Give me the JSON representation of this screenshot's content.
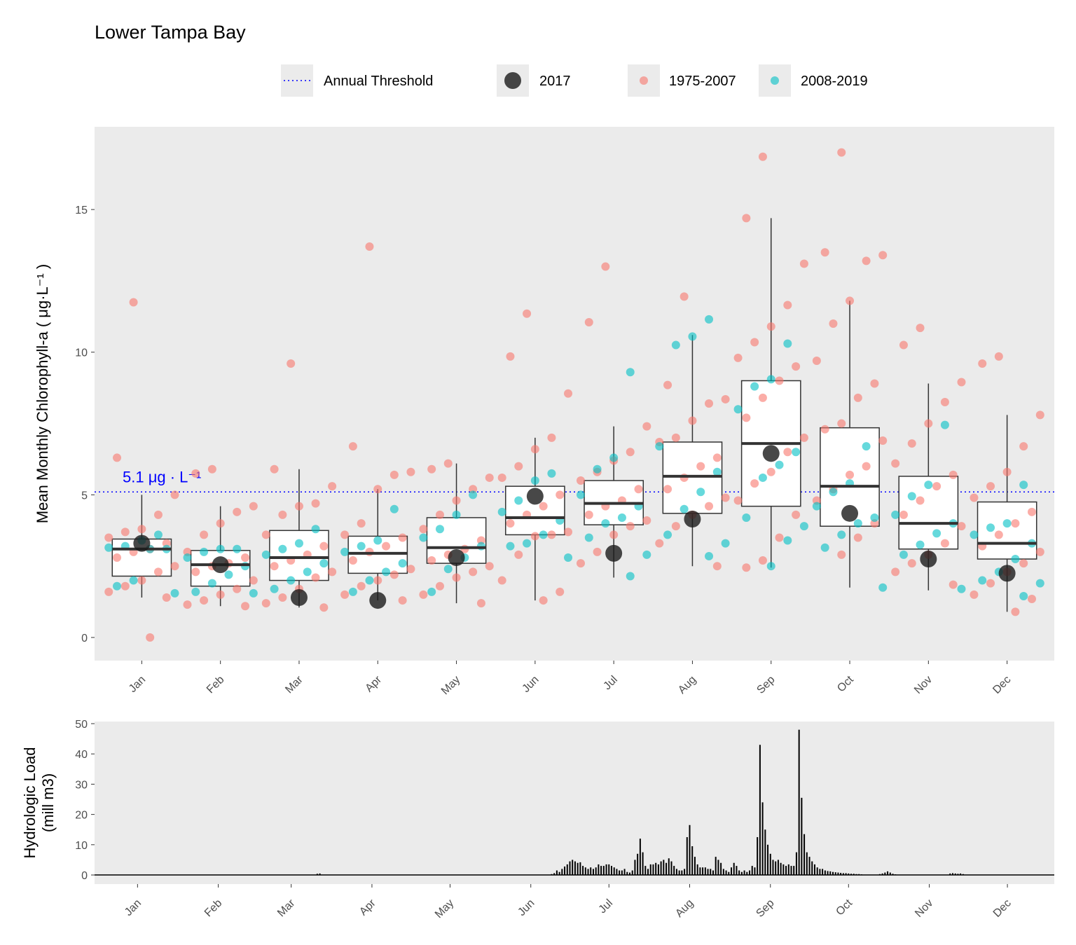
{
  "chart_data": [
    {
      "type": "box",
      "title": "Lower Tampa Bay",
      "ylabel": "Mean Monthly Chlorophyll-a ( μg·L⁻¹ )",
      "categories": [
        "Jan",
        "Feb",
        "Mar",
        "Apr",
        "May",
        "Jun",
        "Jul",
        "Aug",
        "Sep",
        "Oct",
        "Nov",
        "Dec"
      ],
      "ylim": [
        -0.81,
        17.9
      ],
      "yticks": [
        0,
        5,
        10,
        15
      ],
      "grid": false,
      "legend": "top",
      "boxes": {
        "color": "#ffffff",
        "values": [
          [
            1.4,
            2.15,
            3.1,
            3.45,
            5.0
          ],
          [
            1.1,
            1.8,
            2.55,
            3.05,
            4.6
          ],
          [
            1.05,
            2.0,
            2.8,
            3.75,
            5.9
          ],
          [
            1.3,
            2.25,
            2.95,
            3.55,
            5.2
          ],
          [
            1.2,
            2.6,
            3.15,
            4.2,
            6.1
          ],
          [
            1.3,
            3.6,
            4.2,
            5.3,
            7.0
          ],
          [
            2.1,
            3.95,
            4.7,
            5.5,
            7.4
          ],
          [
            2.5,
            4.35,
            5.65,
            6.85,
            10.6
          ],
          [
            2.45,
            4.6,
            6.8,
            9.0,
            14.7
          ],
          [
            1.75,
            3.9,
            5.3,
            7.35,
            11.8
          ],
          [
            1.65,
            3.1,
            4.0,
            5.65,
            8.9
          ],
          [
            0.9,
            2.75,
            3.3,
            4.75,
            7.8
          ]
        ]
      },
      "threshold": {
        "name": "Annual Threshold",
        "value": 5.1,
        "label": "5.1 μg · L⁻¹",
        "color": "#0000FF"
      },
      "series": [
        {
          "name": "2017",
          "color": "#1a1a1a",
          "values": [
            3.3,
            2.55,
            1.4,
            1.3,
            2.8,
            4.95,
            2.95,
            4.15,
            6.45,
            4.35,
            2.75,
            2.25
          ]
        },
        {
          "name": "1975-2007",
          "color": "#F8766D",
          "values": [
            [
              11.75,
              6.3,
              5.0,
              4.3,
              3.8,
              3.7,
              3.5,
              3.3,
              3.1,
              3.0,
              2.8,
              2.5,
              2.3,
              2.0,
              1.8,
              1.6,
              1.4,
              0.0
            ],
            [
              5.9,
              5.75,
              4.6,
              4.4,
              4.0,
              3.6,
              3.0,
              2.8,
              2.6,
              2.5,
              2.3,
              2.0,
              1.7,
              1.5,
              1.3,
              1.15,
              1.1
            ],
            [
              9.6,
              5.9,
              5.3,
              4.7,
              4.6,
              4.3,
              3.6,
              3.2,
              2.9,
              2.7,
              2.5,
              2.3,
              2.1,
              1.7,
              1.4,
              1.2,
              1.05
            ],
            [
              13.7,
              6.7,
              5.8,
              5.7,
              5.2,
              4.0,
              3.6,
              3.5,
              3.2,
              3.0,
              2.7,
              2.4,
              2.2,
              2.0,
              1.8,
              1.5,
              1.3
            ],
            [
              6.1,
              5.9,
              5.6,
              5.2,
              4.8,
              4.3,
              3.8,
              3.4,
              3.1,
              2.9,
              2.7,
              2.5,
              2.3,
              2.1,
              1.8,
              1.5,
              1.2
            ],
            [
              11.35,
              9.85,
              8.55,
              7.0,
              6.6,
              6.0,
              5.6,
              5.0,
              4.6,
              4.3,
              4.0,
              3.7,
              3.6,
              3.55,
              2.9,
              2.0,
              1.6,
              1.3
            ],
            [
              13.0,
              11.05,
              7.4,
              6.5,
              6.2,
              5.8,
              5.5,
              5.2,
              4.8,
              4.6,
              4.3,
              4.1,
              3.9,
              3.6,
              3.0,
              2.6
            ],
            [
              11.95,
              8.85,
              8.35,
              8.2,
              7.6,
              7.0,
              6.85,
              6.3,
              6.0,
              5.6,
              5.2,
              4.9,
              4.6,
              4.3,
              3.9,
              3.3,
              2.5
            ],
            [
              16.85,
              14.7,
              13.1,
              11.65,
              10.9,
              10.35,
              9.8,
              9.5,
              9.0,
              8.4,
              7.7,
              7.0,
              6.5,
              5.8,
              5.4,
              4.8,
              4.3,
              3.5,
              2.7,
              2.45
            ],
            [
              17.0,
              13.5,
              13.4,
              13.2,
              11.8,
              11.0,
              9.7,
              8.9,
              8.4,
              7.5,
              7.3,
              6.9,
              6.0,
              5.7,
              5.2,
              4.8,
              4.0,
              3.5,
              2.9
            ],
            [
              10.85,
              10.25,
              8.95,
              8.25,
              7.5,
              6.8,
              6.1,
              5.7,
              5.3,
              4.8,
              4.3,
              3.9,
              3.3,
              2.9,
              2.6,
              2.3,
              1.85
            ],
            [
              9.85,
              9.6,
              7.8,
              6.7,
              5.8,
              5.3,
              4.9,
              4.4,
              4.0,
              3.6,
              3.2,
              3.0,
              2.6,
              2.3,
              1.9,
              1.5,
              1.35,
              0.9
            ]
          ]
        },
        {
          "name": "2008-2019",
          "color": "#00BFC4",
          "values": [
            [
              3.6,
              3.4,
              3.2,
              3.15,
              3.1,
              3.1,
              2.0,
              1.8,
              1.55
            ],
            [
              3.1,
              3.1,
              3.0,
              2.8,
              2.5,
              2.2,
              1.9,
              1.6,
              1.55
            ],
            [
              3.8,
              3.3,
              3.1,
              2.9,
              2.6,
              2.3,
              2.0,
              1.7
            ],
            [
              4.5,
              3.4,
              3.2,
              3.0,
              2.6,
              2.3,
              2.0,
              1.6
            ],
            [
              5.0,
              4.3,
              3.8,
              3.5,
              3.2,
              2.8,
              2.4,
              1.6
            ],
            [
              5.75,
              5.5,
              4.8,
              4.4,
              4.1,
              3.6,
              3.3,
              3.2,
              2.8
            ],
            [
              9.3,
              6.3,
              5.9,
              5.0,
              4.6,
              4.2,
              4.0,
              3.5,
              2.9,
              2.15
            ],
            [
              11.15,
              10.55,
              10.25,
              6.7,
              5.8,
              5.1,
              4.5,
              3.6,
              3.3,
              2.85
            ],
            [
              10.3,
              9.05,
              8.8,
              8.0,
              6.5,
              6.05,
              5.6,
              4.2,
              3.9,
              3.4,
              2.5
            ],
            [
              6.7,
              5.4,
              5.1,
              4.6,
              4.2,
              4.0,
              3.6,
              3.15,
              1.75
            ],
            [
              7.45,
              5.35,
              4.95,
              4.3,
              4.0,
              3.65,
              3.25,
              2.9,
              1.7
            ],
            [
              5.35,
              4.0,
              3.85,
              3.6,
              3.3,
              2.75,
              2.3,
              2.0,
              1.9,
              1.45
            ]
          ]
        }
      ]
    },
    {
      "type": "bar",
      "ylabel": [
        "Hydrologic Load",
        "(mill m3)"
      ],
      "color": "#000000",
      "xlim": [
        -15.5,
        353
      ],
      "xticks": [
        {
          "value": 1,
          "label": "Jan"
        },
        {
          "value": 32,
          "label": "Feb"
        },
        {
          "value": 60,
          "label": "Mar"
        },
        {
          "value": 91,
          "label": "Apr"
        },
        {
          "value": 121,
          "label": "May"
        },
        {
          "value": 152,
          "label": "Jun"
        },
        {
          "value": 182,
          "label": "Jul"
        },
        {
          "value": 213,
          "label": "Aug"
        },
        {
          "value": 244,
          "label": "Sep"
        },
        {
          "value": 274,
          "label": "Oct"
        },
        {
          "value": 305,
          "label": "Nov"
        },
        {
          "value": 335,
          "label": "Dec"
        }
      ],
      "ylim": [
        -3,
        50.7
      ],
      "yticks": [
        0,
        10,
        20,
        30,
        40,
        50
      ],
      "x": [
        70,
        71,
        160,
        161,
        162,
        163,
        164,
        165,
        166,
        167,
        168,
        169,
        170,
        171,
        172,
        173,
        174,
        175,
        176,
        177,
        178,
        179,
        180,
        181,
        182,
        183,
        184,
        185,
        186,
        187,
        188,
        189,
        190,
        191,
        192,
        193,
        194,
        195,
        196,
        197,
        198,
        199,
        200,
        201,
        202,
        203,
        204,
        205,
        206,
        207,
        208,
        209,
        210,
        211,
        212,
        213,
        214,
        215,
        216,
        217,
        218,
        219,
        220,
        221,
        222,
        223,
        224,
        225,
        226,
        227,
        228,
        229,
        230,
        231,
        232,
        233,
        234,
        235,
        236,
        237,
        238,
        239,
        240,
        241,
        242,
        243,
        244,
        245,
        246,
        247,
        248,
        249,
        250,
        251,
        252,
        253,
        254,
        255,
        256,
        257,
        258,
        259,
        260,
        261,
        262,
        263,
        264,
        265,
        266,
        267,
        268,
        269,
        270,
        271,
        272,
        273,
        274,
        275,
        276,
        277,
        278,
        279,
        286,
        287,
        288,
        289,
        290,
        291,
        292,
        313,
        314,
        315,
        316,
        317,
        318
      ],
      "values": [
        0.4,
        0.5,
        0.3,
        0.6,
        1.5,
        1,
        2,
        2.8,
        3.5,
        4.5,
        5,
        4.5,
        4,
        4.2,
        3,
        2.5,
        2,
        2.5,
        2,
        2.5,
        3.5,
        3,
        3,
        3.5,
        3.5,
        3,
        2.5,
        2,
        1.5,
        1.5,
        2,
        1,
        0.8,
        1.5,
        5,
        7,
        12,
        7.5,
        3,
        2,
        3.5,
        3.5,
        4,
        3.5,
        4.5,
        5,
        4,
        5.5,
        4.5,
        3,
        2,
        1.5,
        1.5,
        2,
        12.5,
        16.5,
        9.5,
        6,
        3.5,
        2.5,
        2.5,
        2.5,
        2,
        2,
        1.5,
        6,
        5,
        4,
        2,
        1.5,
        1,
        2.5,
        4,
        3,
        1.5,
        1,
        1.5,
        1,
        1.5,
        3,
        2.5,
        12.5,
        43,
        24,
        15,
        10,
        7,
        5,
        4.5,
        5,
        4,
        3.5,
        3,
        3.5,
        3,
        3,
        7.5,
        48,
        25.5,
        13.5,
        7.5,
        6,
        4.5,
        3.5,
        2.5,
        2,
        2,
        1.5,
        1.3,
        1.2,
        1,
        0.9,
        0.8,
        0.7,
        0.6,
        0.6,
        0.5,
        0.4,
        0.4,
        0.3,
        0.3,
        0.2,
        0.3,
        0.5,
        0.8,
        1.2,
        0.8,
        0.4,
        0.2,
        0.5,
        0.6,
        0.5,
        0.4,
        0.5,
        0.3
      ]
    }
  ]
}
